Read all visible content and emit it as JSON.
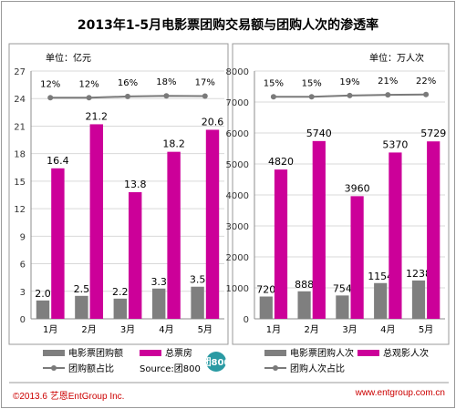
{
  "title": "2013年1-5月电影票团购交易额与团购人次的渗透率",
  "source": "Source:团800",
  "logo_text": "团800",
  "footer": {
    "copyright": "©2013.6 艺恩EntGroup Inc.",
    "url": "www.entgroup.com.cn"
  },
  "colors": {
    "primary": "#7f7f7f",
    "total": "#cc0099",
    "ratio_line": "#7a7a7a",
    "footer_text": "#cc0000",
    "logo": "#2a9aa3"
  },
  "chart_data": [
    {
      "type": "bar",
      "unit_label": "单位：亿元",
      "categories": [
        "1月",
        "2月",
        "3月",
        "4月",
        "5月"
      ],
      "ylim": [
        0,
        27
      ],
      "yticks": [
        0,
        3,
        6,
        9,
        12,
        15,
        18,
        21,
        24,
        27
      ],
      "grid": true,
      "legend_position": "bottom",
      "series": [
        {
          "name": "电影票团购额",
          "values": [
            2.0,
            2.5,
            2.2,
            3.3,
            3.5
          ],
          "labels": [
            "2.0",
            "2.5",
            "2.2",
            "3.3",
            "3.5"
          ]
        },
        {
          "name": "总票房",
          "values": [
            16.4,
            21.2,
            13.8,
            18.2,
            20.6
          ],
          "labels": [
            "16.4",
            "21.2",
            "13.8",
            "18.2",
            "20.6"
          ]
        }
      ],
      "ratio_series": {
        "name": "团购额占比",
        "values": [
          12,
          12,
          16,
          18,
          17
        ],
        "labels": [
          "12%",
          "12%",
          "16%",
          "18%",
          "17%"
        ]
      }
    },
    {
      "type": "bar",
      "unit_label": "单位：万人次",
      "categories": [
        "1月",
        "2月",
        "3月",
        "4月",
        "5月"
      ],
      "ylim": [
        0,
        8000
      ],
      "yticks": [
        0,
        1000,
        2000,
        3000,
        4000,
        5000,
        6000,
        7000,
        8000
      ],
      "grid": true,
      "legend_position": "bottom",
      "series": [
        {
          "name": "电影票团购人次",
          "values": [
            720,
            888,
            754,
            1154,
            1238
          ],
          "labels": [
            "720",
            "888",
            "754",
            "1154",
            "1238"
          ]
        },
        {
          "name": "总观影人次",
          "values": [
            4820,
            5740,
            3960,
            5370,
            5729
          ],
          "labels": [
            "4820",
            "5740",
            "3960",
            "5370",
            "5729"
          ]
        }
      ],
      "ratio_series": {
        "name": "团购人次占比",
        "values": [
          15,
          15,
          19,
          21,
          22
        ],
        "labels": [
          "15%",
          "15%",
          "19%",
          "21%",
          "22%"
        ]
      }
    }
  ]
}
